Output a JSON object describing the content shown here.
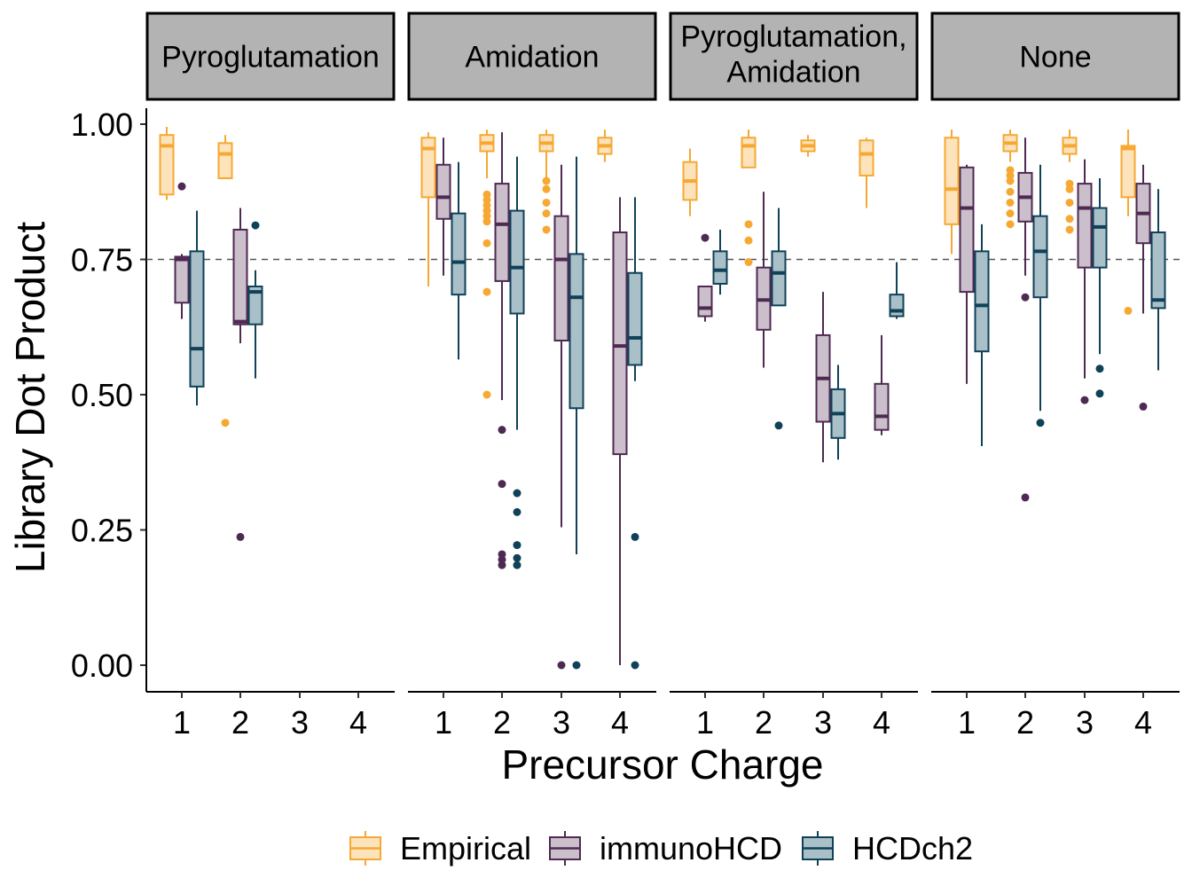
{
  "chart_data": {
    "type": "boxplot",
    "facet_by": "modification",
    "panels": [
      {
        "name": "Pyroglutamation",
        "lines": [
          "Pyroglutamation"
        ]
      },
      {
        "name": "Amidation",
        "lines": [
          "Amidation"
        ]
      },
      {
        "name": "Pyroglutamation, Amidation",
        "lines": [
          "Pyroglutamation,",
          "Amidation"
        ]
      },
      {
        "name": "None",
        "lines": [
          "None"
        ]
      }
    ],
    "x_categories": [
      "1",
      "2",
      "3",
      "4"
    ],
    "xlabel": "Precursor Charge",
    "ylabel": "Library Dot Product",
    "ylim": [
      -0.05,
      1.05
    ],
    "y_ticks": [
      "0.00",
      "0.25",
      "0.50",
      "0.75",
      "1.00"
    ],
    "y_tick_values": [
      0,
      0.25,
      0.5,
      0.75,
      1.0
    ],
    "reference_line_y": 0.75,
    "legend_position": "bottom",
    "series": [
      {
        "name": "Empirical",
        "color": "#F6A833",
        "fill": "#FDE3BB"
      },
      {
        "name": "immunoHCD",
        "color": "#4E2A52",
        "fill": "#CBBFCC"
      },
      {
        "name": "HCDch2",
        "color": "#0F4158",
        "fill": "#A9C0C9"
      }
    ],
    "boxes": [
      {
        "panel": 0,
        "charge": 1,
        "series": 0,
        "min": 0.86,
        "q1": 0.87,
        "median": 0.96,
        "q3": 0.98,
        "max": 0.995,
        "outliers": []
      },
      {
        "panel": 0,
        "charge": 1,
        "series": 1,
        "min": 0.64,
        "q1": 0.67,
        "median": 0.75,
        "q3": 0.755,
        "max": 0.76,
        "outliers": [
          0.885
        ]
      },
      {
        "panel": 0,
        "charge": 1,
        "series": 2,
        "min": 0.48,
        "q1": 0.515,
        "median": 0.585,
        "q3": 0.765,
        "max": 0.84,
        "outliers": []
      },
      {
        "panel": 0,
        "charge": 2,
        "series": 0,
        "min": 0.9,
        "q1": 0.9,
        "median": 0.945,
        "q3": 0.965,
        "max": 0.98,
        "outliers": [
          0.448
        ]
      },
      {
        "panel": 0,
        "charge": 2,
        "series": 1,
        "min": 0.595,
        "q1": 0.63,
        "median": 0.635,
        "q3": 0.805,
        "max": 0.845,
        "outliers": [
          0.237
        ]
      },
      {
        "panel": 0,
        "charge": 2,
        "series": 2,
        "min": 0.53,
        "q1": 0.63,
        "median": 0.69,
        "q3": 0.7,
        "max": 0.73,
        "outliers": [
          0.813
        ]
      },
      {
        "panel": 1,
        "charge": 1,
        "series": 0,
        "min": 0.7,
        "q1": 0.865,
        "median": 0.955,
        "q3": 0.975,
        "max": 0.985,
        "outliers": []
      },
      {
        "panel": 1,
        "charge": 1,
        "series": 1,
        "min": 0.72,
        "q1": 0.825,
        "median": 0.865,
        "q3": 0.925,
        "max": 0.975,
        "outliers": []
      },
      {
        "panel": 1,
        "charge": 1,
        "series": 2,
        "min": 0.565,
        "q1": 0.685,
        "median": 0.745,
        "q3": 0.835,
        "max": 0.93,
        "outliers": []
      },
      {
        "panel": 1,
        "charge": 2,
        "series": 0,
        "min": 0.9,
        "q1": 0.95,
        "median": 0.965,
        "q3": 0.98,
        "max": 0.99,
        "outliers": [
          0.87,
          0.86,
          0.85,
          0.84,
          0.83,
          0.82,
          0.78,
          0.69,
          0.5
        ]
      },
      {
        "panel": 1,
        "charge": 2,
        "series": 1,
        "min": 0.49,
        "q1": 0.71,
        "median": 0.815,
        "q3": 0.89,
        "max": 0.985,
        "outliers": [
          0.435,
          0.335,
          0.205,
          0.195,
          0.185
        ]
      },
      {
        "panel": 1,
        "charge": 2,
        "series": 2,
        "min": 0.435,
        "q1": 0.65,
        "median": 0.735,
        "q3": 0.84,
        "max": 0.94,
        "outliers": [
          0.318,
          0.283,
          0.222,
          0.198,
          0.185
        ]
      },
      {
        "panel": 1,
        "charge": 3,
        "series": 0,
        "min": 0.9,
        "q1": 0.95,
        "median": 0.965,
        "q3": 0.98,
        "max": 0.99,
        "outliers": [
          0.895,
          0.88,
          0.855,
          0.835,
          0.805
        ]
      },
      {
        "panel": 1,
        "charge": 3,
        "series": 1,
        "min": 0.255,
        "q1": 0.6,
        "median": 0.75,
        "q3": 0.83,
        "max": 0.925,
        "outliers": [
          0.0
        ]
      },
      {
        "panel": 1,
        "charge": 3,
        "series": 2,
        "min": 0.205,
        "q1": 0.475,
        "median": 0.68,
        "q3": 0.76,
        "max": 0.94,
        "outliers": [
          0.0
        ]
      },
      {
        "panel": 1,
        "charge": 4,
        "series": 0,
        "min": 0.93,
        "q1": 0.945,
        "median": 0.96,
        "q3": 0.975,
        "max": 0.99,
        "outliers": []
      },
      {
        "panel": 1,
        "charge": 4,
        "series": 1,
        "min": 0.0,
        "q1": 0.39,
        "median": 0.59,
        "q3": 0.8,
        "max": 0.865,
        "outliers": []
      },
      {
        "panel": 1,
        "charge": 4,
        "series": 2,
        "min": 0.525,
        "q1": 0.555,
        "median": 0.605,
        "q3": 0.725,
        "max": 0.865,
        "outliers": [
          0.237,
          0.0
        ]
      },
      {
        "panel": 2,
        "charge": 1,
        "series": 0,
        "min": 0.83,
        "q1": 0.86,
        "median": 0.895,
        "q3": 0.93,
        "max": 0.955,
        "outliers": []
      },
      {
        "panel": 2,
        "charge": 1,
        "series": 1,
        "min": 0.635,
        "q1": 0.645,
        "median": 0.66,
        "q3": 0.7,
        "max": 0.7,
        "outliers": [
          0.79
        ]
      },
      {
        "panel": 2,
        "charge": 1,
        "series": 2,
        "min": 0.685,
        "q1": 0.705,
        "median": 0.73,
        "q3": 0.765,
        "max": 0.805,
        "outliers": []
      },
      {
        "panel": 2,
        "charge": 2,
        "series": 0,
        "min": 0.92,
        "q1": 0.92,
        "median": 0.96,
        "q3": 0.975,
        "max": 0.99,
        "outliers": [
          0.815,
          0.785,
          0.745
        ]
      },
      {
        "panel": 2,
        "charge": 2,
        "series": 1,
        "min": 0.55,
        "q1": 0.62,
        "median": 0.675,
        "q3": 0.735,
        "max": 0.875,
        "outliers": []
      },
      {
        "panel": 2,
        "charge": 2,
        "series": 2,
        "min": 0.665,
        "q1": 0.665,
        "median": 0.725,
        "q3": 0.765,
        "max": 0.845,
        "outliers": [
          0.443
        ]
      },
      {
        "panel": 2,
        "charge": 3,
        "series": 0,
        "min": 0.94,
        "q1": 0.95,
        "median": 0.96,
        "q3": 0.97,
        "max": 0.98,
        "outliers": []
      },
      {
        "panel": 2,
        "charge": 3,
        "series": 1,
        "min": 0.375,
        "q1": 0.45,
        "median": 0.53,
        "q3": 0.61,
        "max": 0.69,
        "outliers": []
      },
      {
        "panel": 2,
        "charge": 3,
        "series": 2,
        "min": 0.38,
        "q1": 0.42,
        "median": 0.465,
        "q3": 0.51,
        "max": 0.555,
        "outliers": []
      },
      {
        "panel": 2,
        "charge": 4,
        "series": 0,
        "min": 0.845,
        "q1": 0.905,
        "median": 0.945,
        "q3": 0.97,
        "max": 0.975,
        "outliers": []
      },
      {
        "panel": 2,
        "charge": 4,
        "series": 1,
        "min": 0.425,
        "q1": 0.435,
        "median": 0.46,
        "q3": 0.52,
        "max": 0.61,
        "outliers": []
      },
      {
        "panel": 2,
        "charge": 4,
        "series": 2,
        "min": 0.64,
        "q1": 0.645,
        "median": 0.655,
        "q3": 0.685,
        "max": 0.745,
        "outliers": []
      },
      {
        "panel": 3,
        "charge": 1,
        "series": 0,
        "min": 0.76,
        "q1": 0.815,
        "median": 0.88,
        "q3": 0.975,
        "max": 0.99,
        "outliers": []
      },
      {
        "panel": 3,
        "charge": 1,
        "series": 1,
        "min": 0.52,
        "q1": 0.69,
        "median": 0.845,
        "q3": 0.92,
        "max": 0.925,
        "outliers": []
      },
      {
        "panel": 3,
        "charge": 1,
        "series": 2,
        "min": 0.405,
        "q1": 0.58,
        "median": 0.665,
        "q3": 0.765,
        "max": 0.815,
        "outliers": []
      },
      {
        "panel": 3,
        "charge": 2,
        "series": 0,
        "min": 0.93,
        "q1": 0.95,
        "median": 0.965,
        "q3": 0.98,
        "max": 0.99,
        "outliers": [
          0.915,
          0.905,
          0.895,
          0.875,
          0.855,
          0.835,
          0.815
        ]
      },
      {
        "panel": 3,
        "charge": 2,
        "series": 1,
        "min": 0.72,
        "q1": 0.82,
        "median": 0.865,
        "q3": 0.91,
        "max": 0.975,
        "outliers": [
          0.68,
          0.31
        ]
      },
      {
        "panel": 3,
        "charge": 2,
        "series": 2,
        "min": 0.47,
        "q1": 0.68,
        "median": 0.765,
        "q3": 0.83,
        "max": 0.925,
        "outliers": [
          0.448
        ]
      },
      {
        "panel": 3,
        "charge": 3,
        "series": 0,
        "min": 0.93,
        "q1": 0.945,
        "median": 0.96,
        "q3": 0.975,
        "max": 0.99,
        "outliers": [
          0.89,
          0.88,
          0.855,
          0.825,
          0.805
        ]
      },
      {
        "panel": 3,
        "charge": 3,
        "series": 1,
        "min": 0.53,
        "q1": 0.735,
        "median": 0.845,
        "q3": 0.89,
        "max": 0.935,
        "outliers": [
          0.49
        ]
      },
      {
        "panel": 3,
        "charge": 3,
        "series": 2,
        "min": 0.575,
        "q1": 0.735,
        "median": 0.81,
        "q3": 0.845,
        "max": 0.9,
        "outliers": [
          0.548,
          0.502
        ]
      },
      {
        "panel": 3,
        "charge": 4,
        "series": 0,
        "min": 0.83,
        "q1": 0.865,
        "median": 0.955,
        "q3": 0.96,
        "max": 0.99,
        "outliers": [
          0.655
        ]
      },
      {
        "panel": 3,
        "charge": 4,
        "series": 1,
        "min": 0.65,
        "q1": 0.78,
        "median": 0.835,
        "q3": 0.89,
        "max": 0.925,
        "outliers": [
          0.478
        ]
      },
      {
        "panel": 3,
        "charge": 4,
        "series": 2,
        "min": 0.545,
        "q1": 0.66,
        "median": 0.675,
        "q3": 0.8,
        "max": 0.88,
        "outliers": []
      }
    ]
  }
}
